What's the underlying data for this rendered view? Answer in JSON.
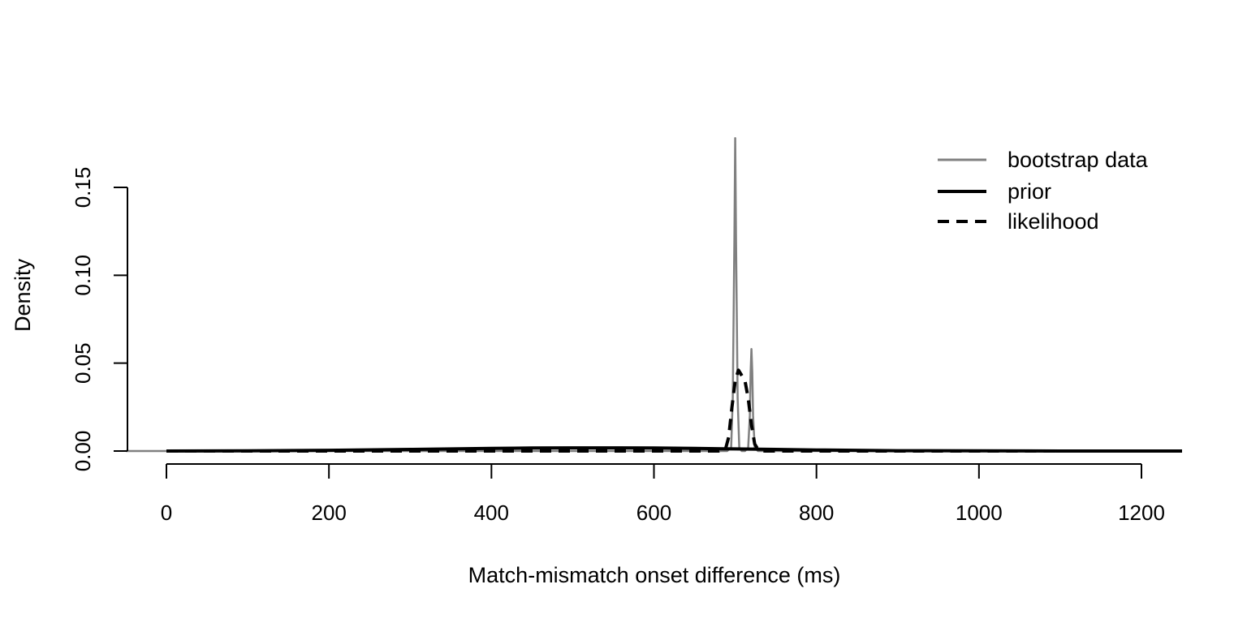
{
  "chart_data": {
    "type": "line",
    "title": "",
    "xlabel": "Match-mismatch onset difference (ms)",
    "ylabel": "Density",
    "xlim": [
      -125,
      1250
    ],
    "ylim": [
      0,
      0.16
    ],
    "x_ticks": [
      0,
      200,
      400,
      600,
      800,
      1000,
      1200
    ],
    "x_tick_labels": [
      "0",
      "200",
      "400",
      "600",
      "800",
      "1000",
      "1200"
    ],
    "y_ticks": [
      0.0,
      0.05,
      0.1,
      0.15
    ],
    "y_tick_labels": [
      "0.00",
      "0.05",
      "0.10",
      "0.15"
    ],
    "grid": false,
    "legend_position": "top-right",
    "series": [
      {
        "name": "bootstrap data",
        "color": "#808080",
        "style": "solid",
        "x": [
          -50,
          690,
          695,
          697,
          699,
          700,
          701,
          703,
          705,
          708,
          712,
          716,
          718,
          719,
          720,
          721,
          722,
          724,
          728,
          1250
        ],
        "y": [
          0,
          0,
          0.002,
          0.03,
          0.12,
          0.178,
          0.12,
          0.03,
          0.002,
          0,
          0,
          0.002,
          0.02,
          0.045,
          0.058,
          0.045,
          0.02,
          0.002,
          0,
          0
        ]
      },
      {
        "name": "prior",
        "color": "#000000",
        "style": "solid",
        "x": [
          0,
          100,
          200,
          300,
          400,
          450,
          500,
          550,
          600,
          650,
          700,
          750,
          800,
          900,
          1000,
          1100,
          1250
        ],
        "y": [
          0,
          0.0001,
          0.0004,
          0.0009,
          0.0015,
          0.0017,
          0.0018,
          0.0018,
          0.0017,
          0.0015,
          0.0012,
          0.0009,
          0.0006,
          0.0002,
          0.0001,
          0,
          0
        ]
      },
      {
        "name": "likelihood",
        "color": "#000000",
        "style": "dashed",
        "x": [
          0,
          680,
          688,
          692,
          696,
          700,
          704,
          708,
          712,
          716,
          720,
          724,
          728,
          736,
          1250
        ],
        "y": [
          0,
          0,
          0.001,
          0.008,
          0.025,
          0.04,
          0.046,
          0.043,
          0.04,
          0.03,
          0.015,
          0.004,
          0.001,
          0,
          0
        ]
      }
    ]
  }
}
